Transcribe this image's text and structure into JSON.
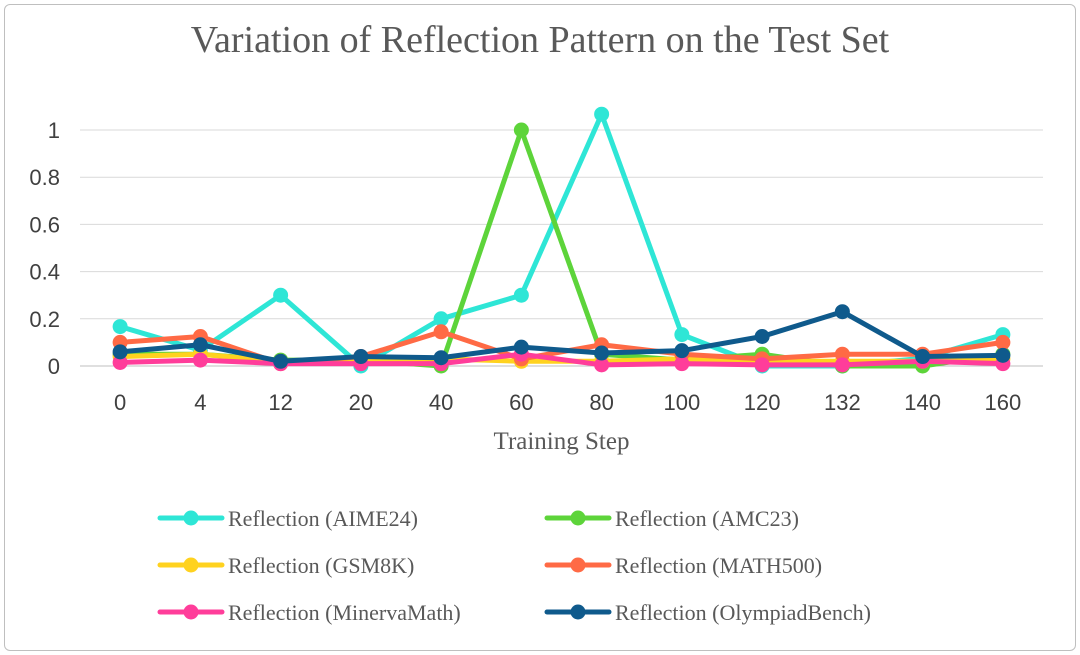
{
  "chart_data": {
    "type": "line",
    "title": "Variation of Reflection Pattern on the Test Set",
    "xlabel": "Training Step",
    "ylabel": "",
    "categories": [
      "0",
      "4",
      "12",
      "20",
      "40",
      "60",
      "80",
      "100",
      "120",
      "132",
      "140",
      "160"
    ],
    "y_ticks": [
      "0",
      "0.2",
      "0.4",
      "0.6",
      "0.8",
      "1"
    ],
    "ylim": [
      0,
      1.1
    ],
    "grid": true,
    "legend_position": "bottom",
    "series": [
      {
        "name": "Reflection (AIME24)",
        "color": "#2ee6d6",
        "values": [
          0.167,
          0.067,
          0.3,
          0.0,
          0.2,
          0.3,
          1.067,
          0.133,
          0.0,
          0.0,
          0.033,
          0.133
        ]
      },
      {
        "name": "Reflection (AMC23)",
        "color": "#5dd43a",
        "values": [
          0.05,
          0.05,
          0.025,
          0.025,
          0.0,
          1.0,
          0.05,
          0.025,
          0.05,
          0.0,
          0.0,
          0.05
        ]
      },
      {
        "name": "Reflection (GSM8K)",
        "color": "#ffd21f",
        "values": [
          0.04,
          0.05,
          0.02,
          0.02,
          0.03,
          0.02,
          0.02,
          0.03,
          0.02,
          0.02,
          0.02,
          0.03
        ]
      },
      {
        "name": "Reflection (MATH500)",
        "color": "#ff6a45",
        "values": [
          0.1,
          0.125,
          0.01,
          0.04,
          0.145,
          0.03,
          0.09,
          0.05,
          0.03,
          0.05,
          0.05,
          0.1
        ]
      },
      {
        "name": "Reflection (MinervaMath)",
        "color": "#ff3d9a",
        "values": [
          0.015,
          0.025,
          0.01,
          0.01,
          0.01,
          0.05,
          0.005,
          0.01,
          0.005,
          0.005,
          0.02,
          0.01
        ]
      },
      {
        "name": "Reflection (OlympiadBench)",
        "color": "#0f5a8c",
        "values": [
          0.06,
          0.09,
          0.02,
          0.04,
          0.035,
          0.08,
          0.055,
          0.065,
          0.125,
          0.23,
          0.04,
          0.045
        ]
      }
    ]
  }
}
